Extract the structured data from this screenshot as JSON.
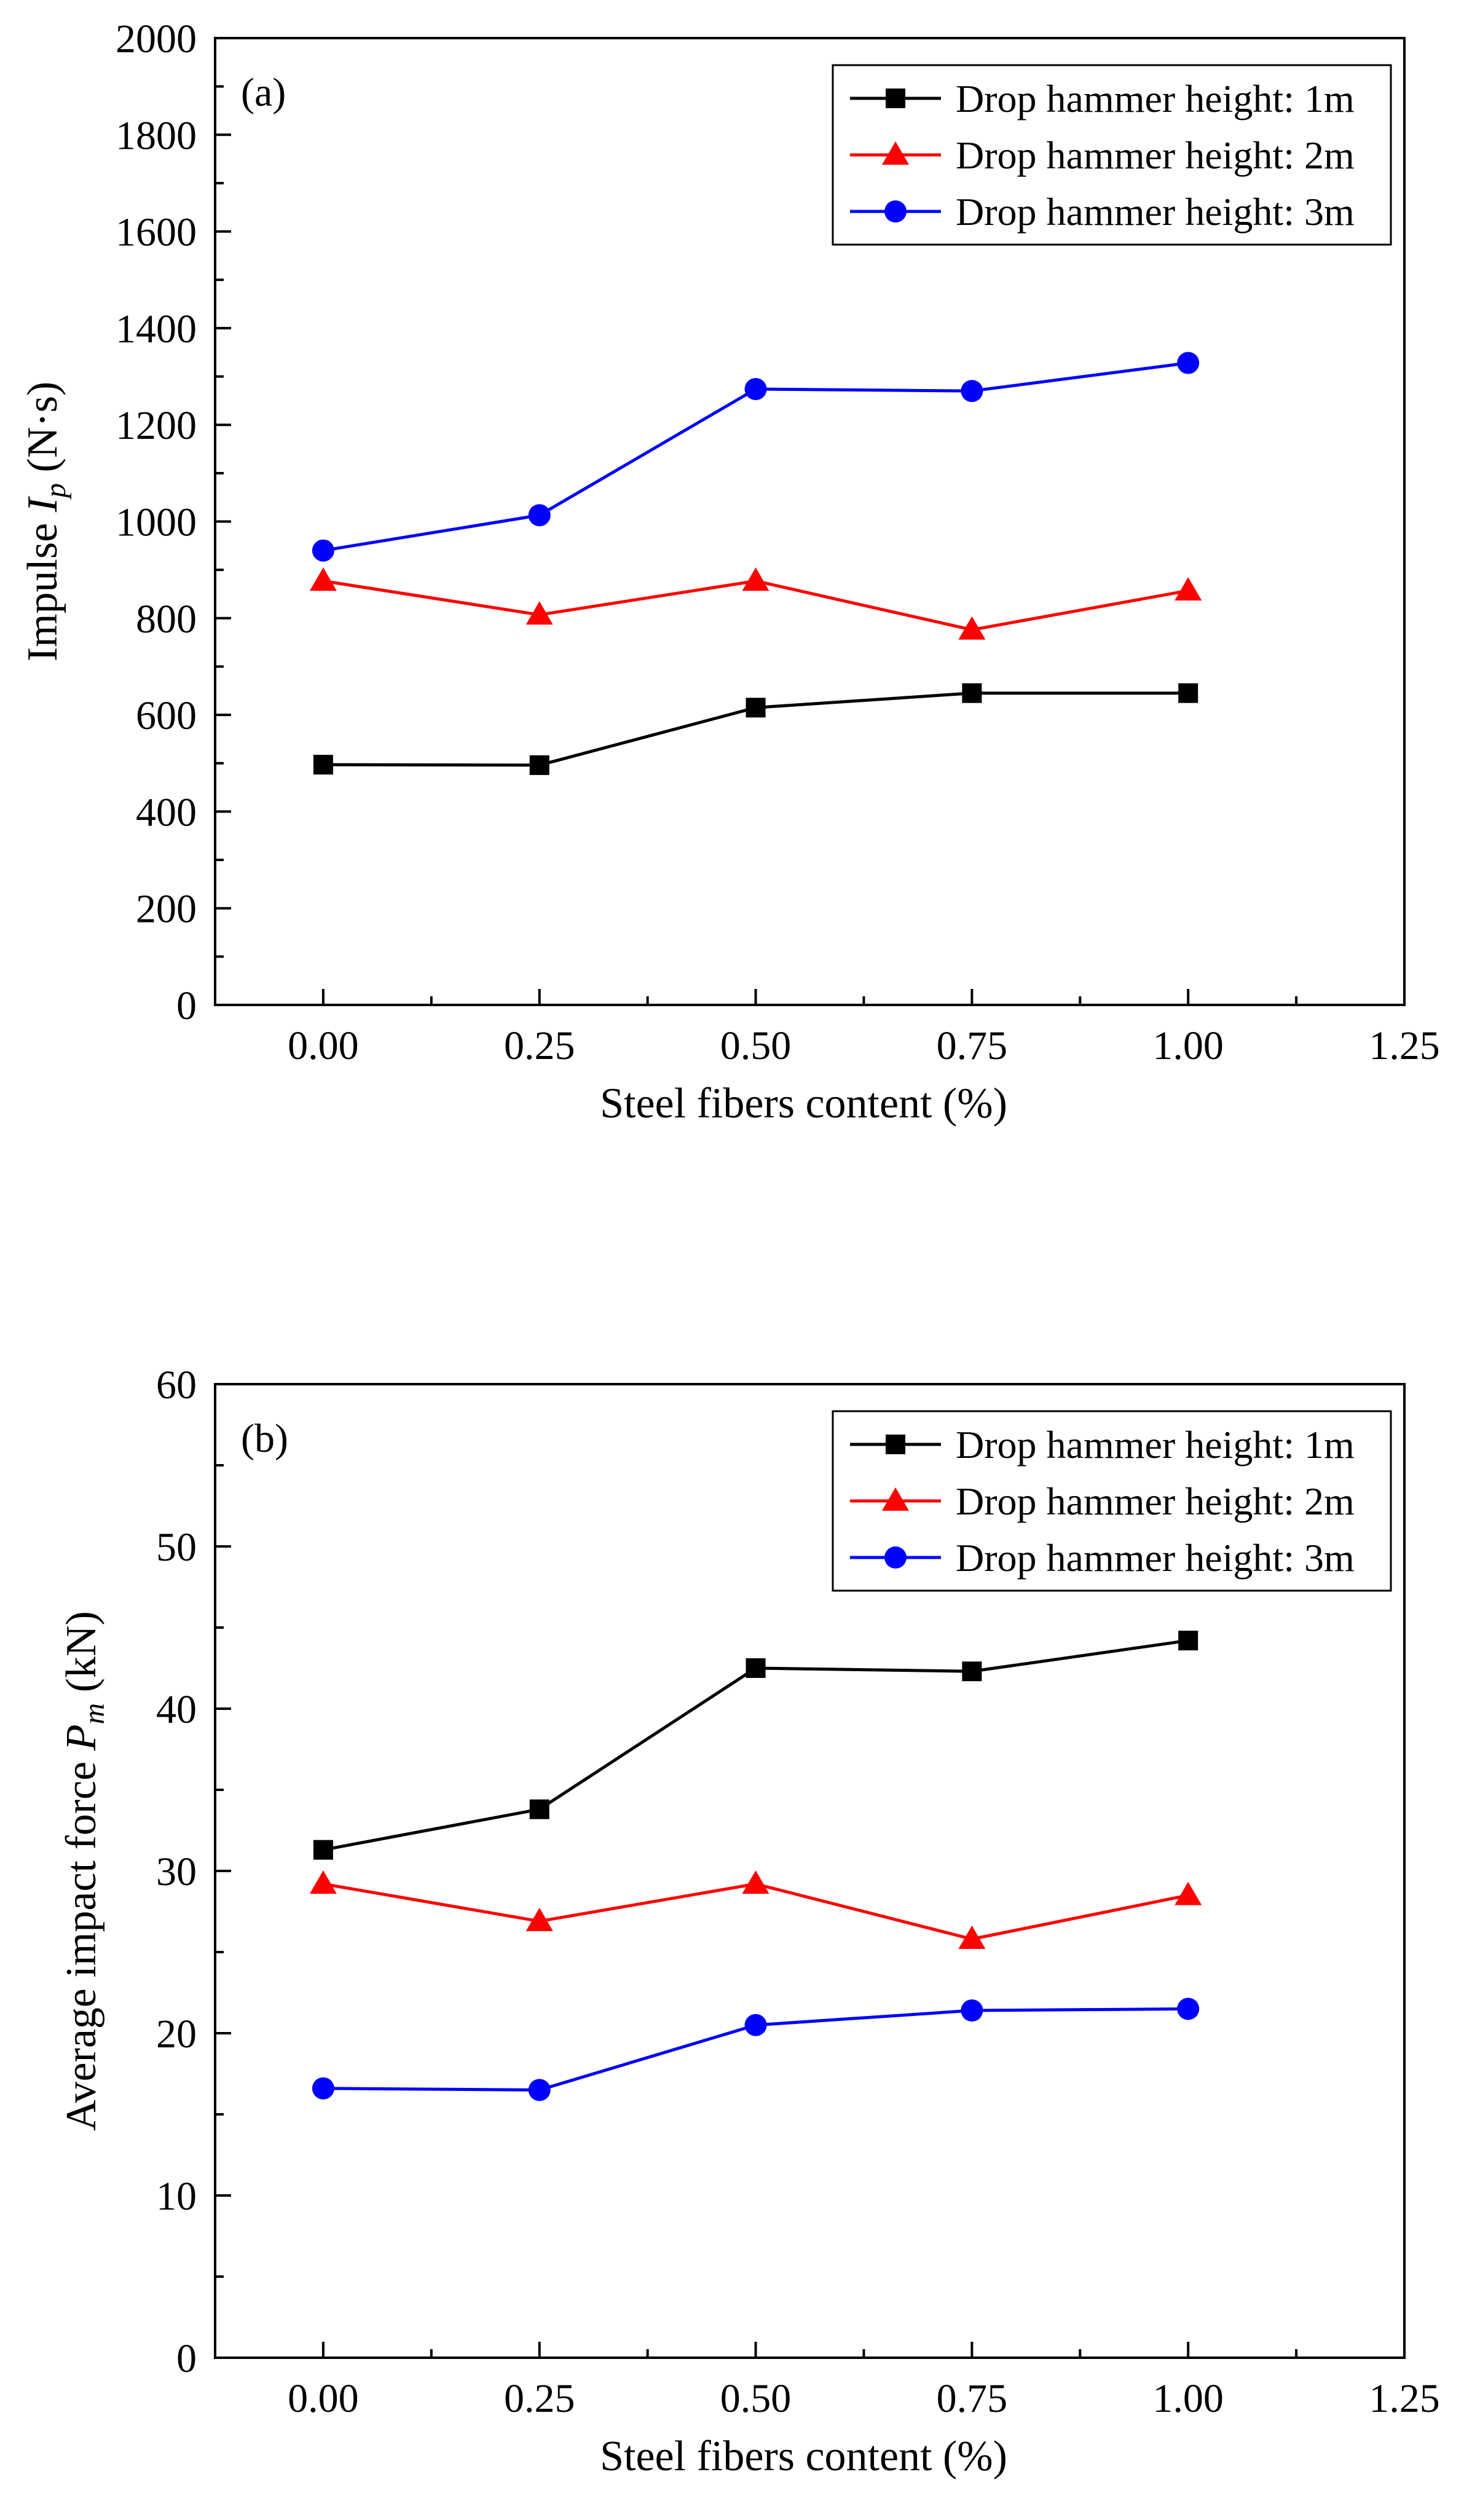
{
  "chart_data": [
    {
      "type": "line",
      "panel_label": "(a)",
      "xlabel": "Steel fibers content (%)",
      "ylabel": {
        "prefix": "Impulse ",
        "symbol": "I",
        "subscript": "p",
        "suffix": " (N·s)"
      },
      "xlim": [
        -0.125,
        1.25
      ],
      "ylim": [
        0,
        2000
      ],
      "xticks": [
        0.0,
        0.25,
        0.5,
        0.75,
        1.0,
        1.25
      ],
      "xtick_labels": [
        "0.00",
        "0.25",
        "0.50",
        "0.75",
        "1.00",
        "1.25"
      ],
      "yticks": [
        0,
        200,
        400,
        600,
        800,
        1000,
        1200,
        1400,
        1600,
        1800,
        2000
      ],
      "ytick_labels": [
        "0",
        "200",
        "400",
        "600",
        "800",
        "1000",
        "1200",
        "1400",
        "1600",
        "1800",
        "2000"
      ],
      "x": [
        0.0,
        0.25,
        0.5,
        0.75,
        1.0
      ],
      "legend_position": "top-right",
      "series": [
        {
          "name": "Drop hammer height: 1m",
          "color": "#000000",
          "marker": "square",
          "values": [
            497,
            496,
            615,
            645,
            645
          ]
        },
        {
          "name": "Drop hammer height: 2m",
          "color": "#ff0000",
          "marker": "triangle",
          "values": [
            877,
            807,
            877,
            776,
            857
          ]
        },
        {
          "name": "Drop hammer height: 3m",
          "color": "#0000ff",
          "marker": "circle",
          "values": [
            940,
            1013,
            1274,
            1270,
            1328
          ]
        }
      ]
    },
    {
      "type": "line",
      "panel_label": "(b)",
      "xlabel": "Steel fibers content (%)",
      "ylabel": {
        "prefix": "Average impact force ",
        "symbol": "P",
        "subscript": "m",
        "suffix": " (kN)"
      },
      "xlim": [
        -0.125,
        1.25
      ],
      "ylim": [
        0,
        60
      ],
      "xticks": [
        0.0,
        0.25,
        0.5,
        0.75,
        1.0,
        1.25
      ],
      "xtick_labels": [
        "0.00",
        "0.25",
        "0.50",
        "0.75",
        "1.00",
        "1.25"
      ],
      "yticks": [
        0,
        10,
        20,
        30,
        40,
        50,
        60
      ],
      "ytick_labels": [
        "0",
        "10",
        "20",
        "30",
        "40",
        "50",
        "60"
      ],
      "x": [
        0.0,
        0.25,
        0.5,
        0.75,
        1.0
      ],
      "legend_position": "top-right",
      "series": [
        {
          "name": "Drop hammer height: 1m",
          "color": "#000000",
          "marker": "square",
          "values": [
            31.3,
            33.8,
            42.5,
            42.3,
            44.2
          ]
        },
        {
          "name": "Drop hammer height: 2m",
          "color": "#ff0000",
          "marker": "triangle",
          "values": [
            29.2,
            26.9,
            29.2,
            25.8,
            28.5
          ]
        },
        {
          "name": "Drop hammer height: 3m",
          "color": "#0000ff",
          "marker": "circle",
          "values": [
            16.6,
            16.5,
            20.5,
            21.4,
            21.5
          ]
        }
      ]
    }
  ]
}
